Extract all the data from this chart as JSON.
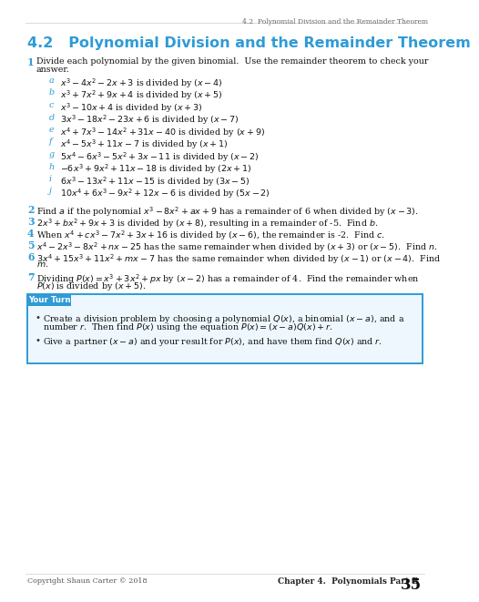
{
  "header_text": "4.2  Polynomial Division and the Remainder Theorem",
  "title": "4.2   Polynomial Division and the Remainder Theorem",
  "title_color": "#2E9BD6",
  "header_color": "#666666",
  "bg_color": "#ffffff",
  "footer_left": "Copyright Shaun Carter © 2018",
  "footer_right": "Chapter 4.  Polynomials Part B",
  "footer_page": "35",
  "your_turn_box_color": "#2E9BD6",
  "your_turn_bg": "#EEF7FD"
}
